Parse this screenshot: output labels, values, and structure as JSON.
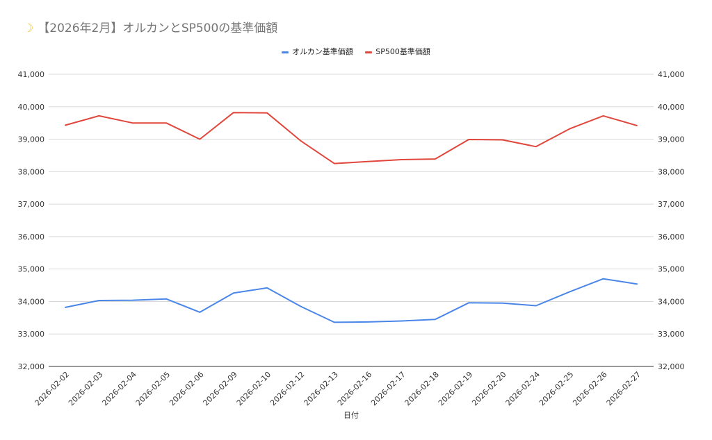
{
  "title": {
    "icon": "crescent-moon-icon",
    "text": "【2026年2月】オルカンとSP500の基準価額"
  },
  "chart_data": {
    "type": "line",
    "title": "【2026年2月】オルカンとSP500の基準価額",
    "xlabel": "日付",
    "ylabel": "",
    "ylim": [
      32000,
      41000
    ],
    "yticks": [
      32000,
      33000,
      34000,
      35000,
      36000,
      37000,
      38000,
      39000,
      40000,
      41000
    ],
    "ytick_labels": [
      "32,000",
      "33,000",
      "34,000",
      "35,000",
      "36,000",
      "37,000",
      "38,000",
      "39,000",
      "40,000",
      "41,000"
    ],
    "dual_axis_labels": true,
    "grid": true,
    "legend_position": "top-center",
    "categories": [
      "2026-02-02",
      "2026-02-03",
      "2026-02-04",
      "2026-02-05",
      "2026-02-06",
      "2026-02-09",
      "2026-02-10",
      "2026-02-12",
      "2026-02-13",
      "2026-02-16",
      "2026-02-17",
      "2026-02-18",
      "2026-02-19",
      "2026-02-20",
      "2026-02-24",
      "2026-02-25",
      "2026-02-26",
      "2026-02-27"
    ],
    "series": [
      {
        "name": "オルカン基準価額",
        "color": "#4a86e8",
        "values": [
          33820,
          34030,
          34040,
          34080,
          33670,
          34260,
          34420,
          33850,
          33360,
          33370,
          33400,
          33450,
          33960,
          33950,
          33870,
          34300,
          34700,
          34540
        ]
      },
      {
        "name": "SP500基準価額",
        "color": "#e0463b",
        "values": [
          39430,
          39720,
          39500,
          39500,
          39000,
          39820,
          39810,
          38950,
          38250,
          38310,
          38370,
          38390,
          38990,
          38980,
          38770,
          39320,
          39720,
          39420
        ]
      }
    ]
  }
}
